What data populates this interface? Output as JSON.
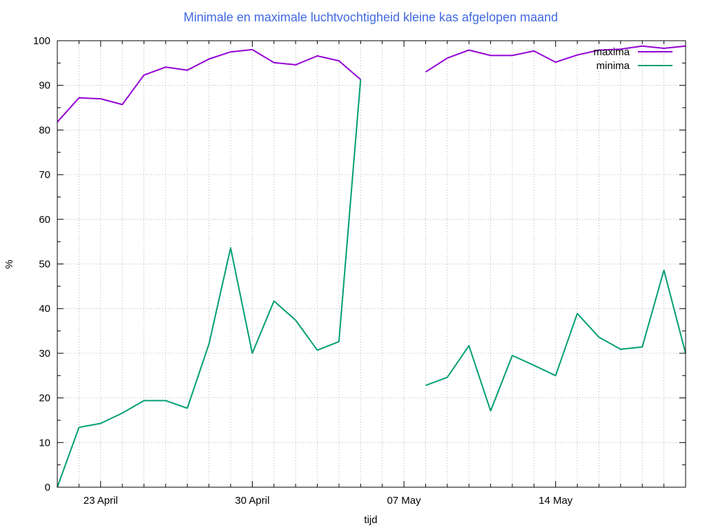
{
  "chart_data": {
    "type": "line",
    "title": "Minimale en maximale luchtvochtigheid kleine kas afgelopen maand",
    "xlabel": "tijd",
    "ylabel": "%",
    "ylim": [
      0,
      100
    ],
    "yticks": [
      0,
      10,
      20,
      30,
      40,
      50,
      60,
      70,
      80,
      90,
      100
    ],
    "xlim": [
      "2020-04-21",
      "2020-05-20"
    ],
    "xticks": [
      {
        "date": "2020-04-23",
        "label": "23 April"
      },
      {
        "date": "2020-04-30",
        "label": "30 April"
      },
      {
        "date": "2020-05-07",
        "label": "07 May"
      },
      {
        "date": "2020-05-14",
        "label": "14 May"
      }
    ],
    "grid": true,
    "legend_position": "top-right",
    "x": [
      "2020-04-21",
      "2020-04-22",
      "2020-04-23",
      "2020-04-24",
      "2020-04-25",
      "2020-04-26",
      "2020-04-27",
      "2020-04-28",
      "2020-04-29",
      "2020-04-30",
      "2020-05-01",
      "2020-05-02",
      "2020-05-03",
      "2020-05-04",
      "2020-05-05",
      "2020-05-06",
      "2020-05-07",
      "2020-05-08",
      "2020-05-09",
      "2020-05-10",
      "2020-05-11",
      "2020-05-12",
      "2020-05-13",
      "2020-05-14",
      "2020-05-15",
      "2020-05-16",
      "2020-05-17",
      "2020-05-18",
      "2020-05-19",
      "2020-05-20"
    ],
    "series": [
      {
        "name": "maxima",
        "color": "#9400d3",
        "values": [
          81.8,
          87.2,
          87.0,
          85.7,
          92.3,
          94.1,
          93.4,
          95.9,
          97.5,
          98.0,
          95.1,
          94.6,
          96.6,
          95.5,
          91.3,
          null,
          null,
          93.0,
          96.1,
          97.9,
          96.7,
          96.7,
          97.7,
          95.2,
          96.8,
          97.9,
          98.1,
          98.8,
          98.3,
          98.8
        ]
      },
      {
        "name": "minima",
        "color": "#009e73",
        "values": [
          0,
          13.4,
          14.3,
          16.6,
          19.4,
          19.4,
          17.7,
          32.1,
          53.6,
          30.0,
          41.7,
          37.4,
          30.7,
          32.6,
          91.3,
          null,
          null,
          22.8,
          24.6,
          31.7,
          17.1,
          29.5,
          27.3,
          25.0,
          38.9,
          33.6,
          30.9,
          31.4,
          48.6,
          30.0
        ]
      }
    ]
  }
}
